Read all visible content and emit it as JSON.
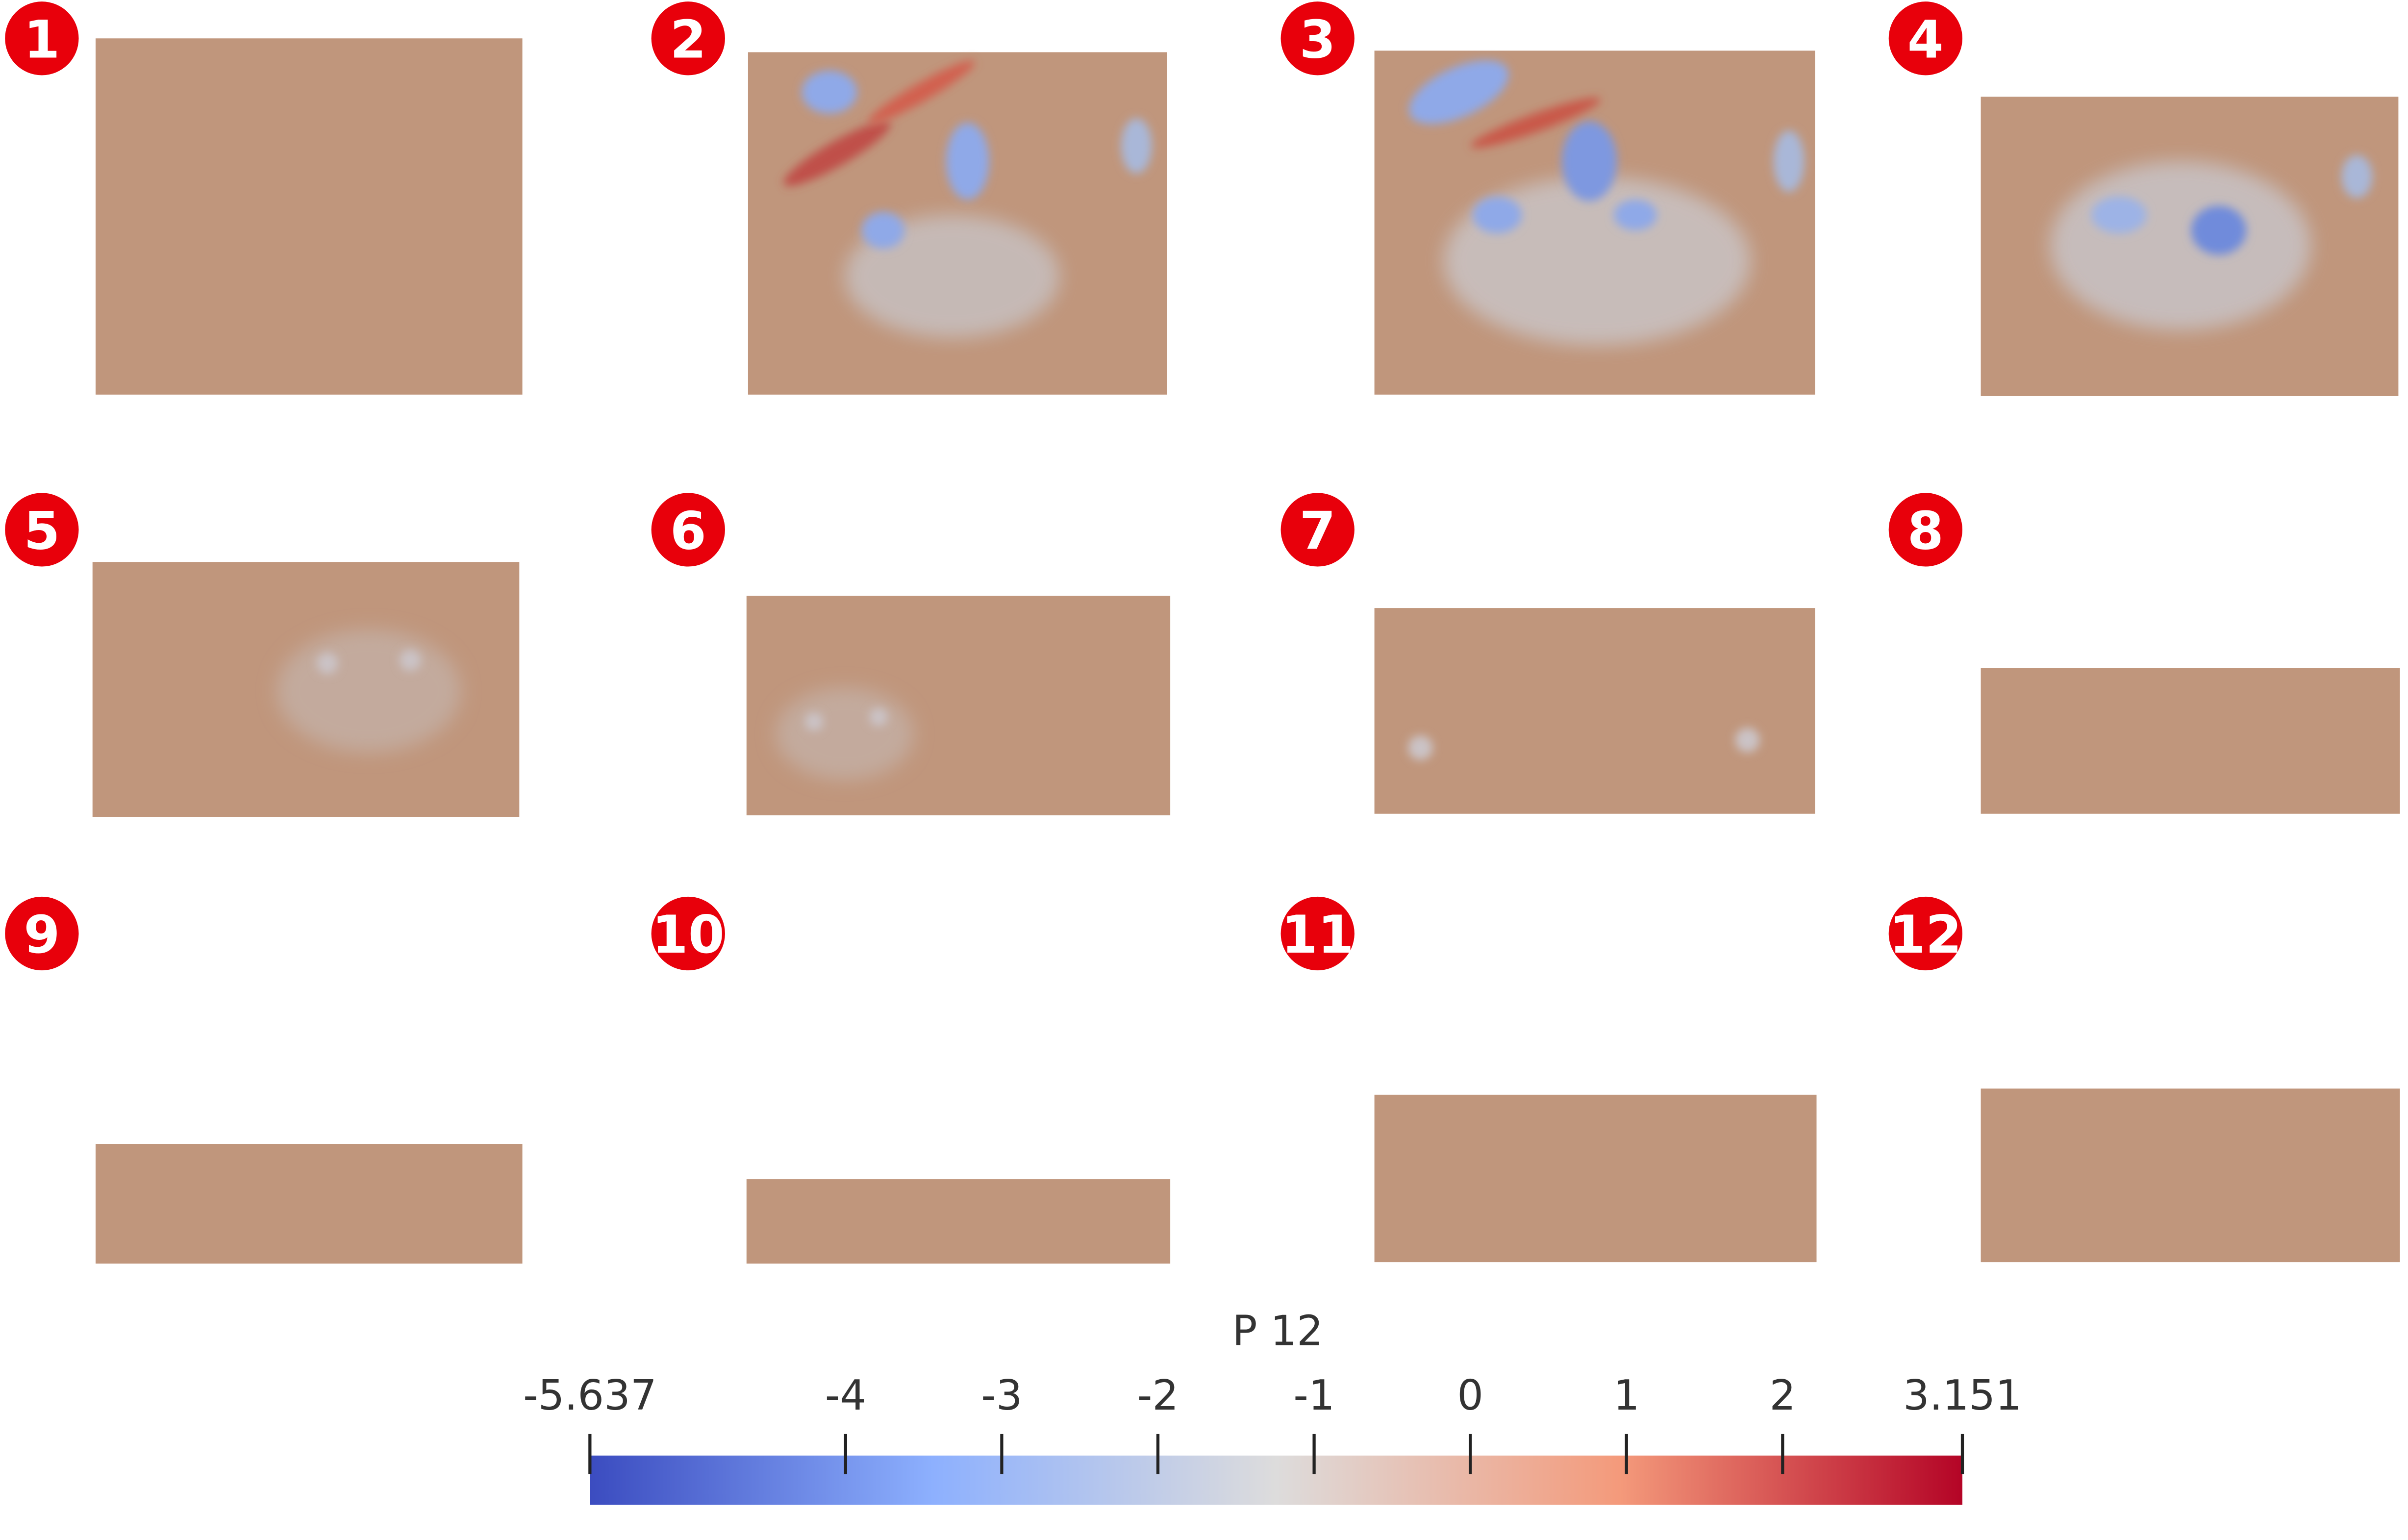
{
  "panels": [
    {
      "label": "1"
    },
    {
      "label": "2"
    },
    {
      "label": "3"
    },
    {
      "label": "4"
    },
    {
      "label": "5"
    },
    {
      "label": "6"
    },
    {
      "label": "7"
    },
    {
      "label": "8"
    },
    {
      "label": "9"
    },
    {
      "label": "10"
    },
    {
      "label": "11"
    },
    {
      "label": "12"
    }
  ],
  "colorbar": {
    "title": "P 12",
    "min": -5.637,
    "max": 3.151,
    "ticks": [
      -5.637,
      -4,
      -3,
      -2,
      -1,
      0,
      1,
      2,
      3.151
    ]
  }
}
